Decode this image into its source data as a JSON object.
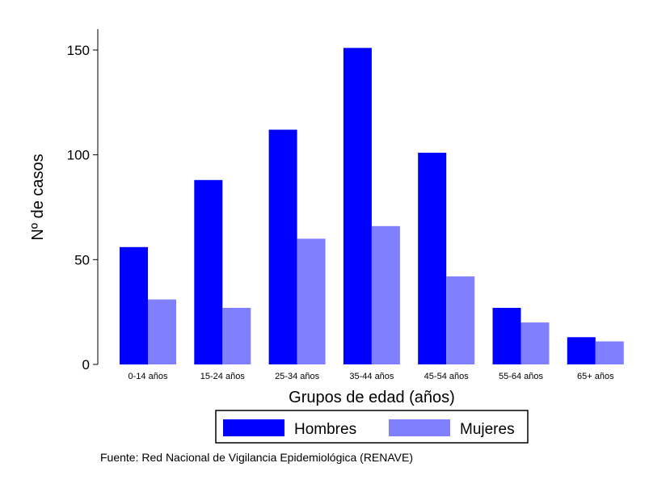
{
  "chart_data": {
    "type": "bar",
    "categories": [
      "0-14 años",
      "15-24 años",
      "25-34 años",
      "35-44 años",
      "45-54 años",
      "55-64 años",
      "65+ años"
    ],
    "series": [
      {
        "name": "Hombres",
        "color": "#0000ff",
        "values": [
          56,
          88,
          112,
          151,
          101,
          27,
          13
        ]
      },
      {
        "name": "Mujeres",
        "color": "#8080ff",
        "values": [
          31,
          27,
          60,
          66,
          42,
          20,
          11
        ]
      }
    ],
    "xlabel": "Grupos de edad (años)",
    "ylabel": "Nº de casos",
    "ylim": [
      0,
      160
    ],
    "yticks": [
      0,
      50,
      100,
      150
    ],
    "grid": false,
    "legend_position": "bottom",
    "source": "Fuente: Red Nacional de Vigilancia Epidemiológica (RENAVE)"
  }
}
